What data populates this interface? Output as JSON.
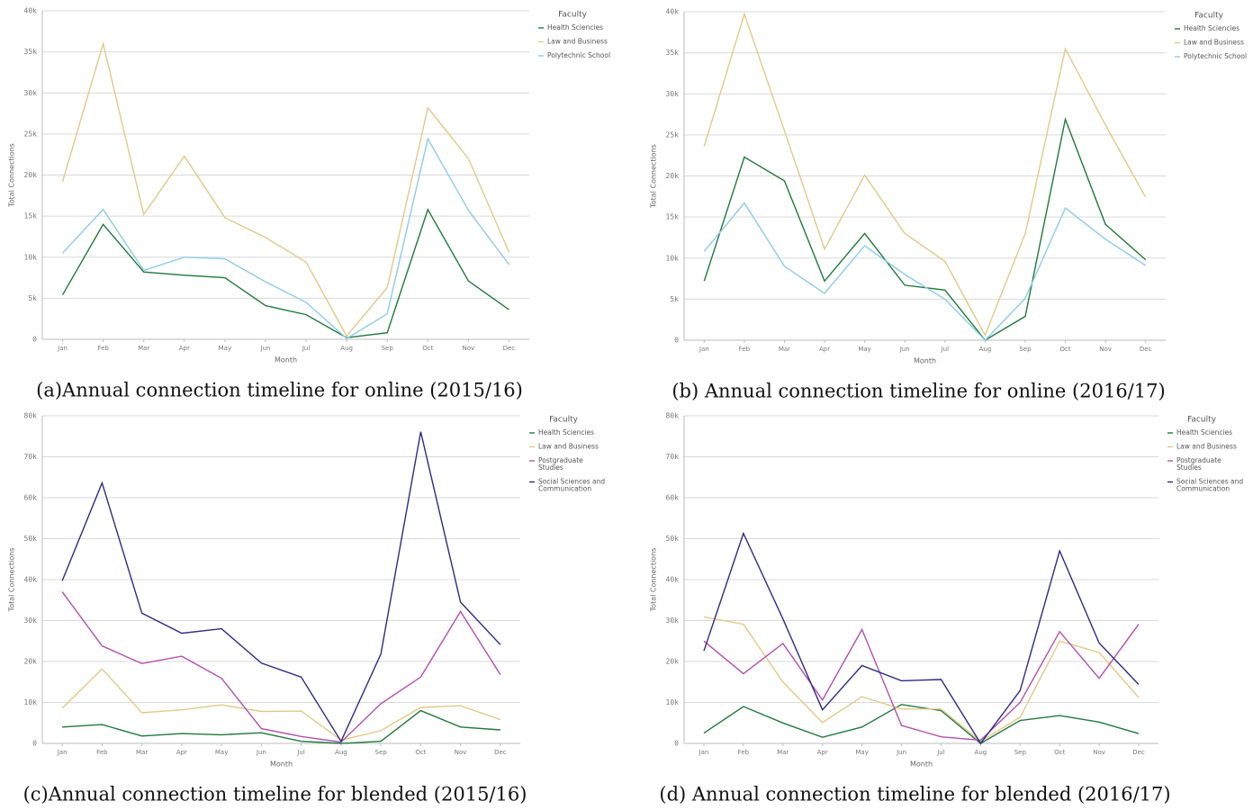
{
  "chart_data": [
    {
      "type": "line",
      "caption": "(a)Annual connection timeline for online (2015/16)",
      "x_label": "Month",
      "y_label": "Total Connections",
      "legend_title": "Faculty",
      "categories": [
        "Jan",
        "Feb",
        "Mar",
        "Apr",
        "May",
        "Jun",
        "Jul",
        "Aug",
        "Sep",
        "Oct",
        "Nov",
        "Dec"
      ],
      "ylim": [
        0,
        40000
      ],
      "yticks": [
        0,
        {
          "value": 5000,
          "label": "5k"
        },
        {
          "value": 10000,
          "label": "10k"
        },
        {
          "value": 15000,
          "label": "15k"
        },
        {
          "value": 20000,
          "label": "20k"
        },
        {
          "value": 25000,
          "label": "25k"
        },
        {
          "value": 30000,
          "label": "30k"
        },
        {
          "value": 35000,
          "label": "35k"
        },
        {
          "value": 40000,
          "label": "40k"
        }
      ],
      "grid": true,
      "series": [
        {
          "name": "Health Sciencies",
          "color": "#1e7a3a",
          "values": [
            5400,
            14000,
            8200,
            7800,
            7500,
            4100,
            3000,
            200,
            800,
            15800,
            7100,
            3600
          ]
        },
        {
          "name": "Law and Business",
          "color": "#e3c987",
          "values": [
            19200,
            36000,
            15200,
            22300,
            14800,
            12400,
            9400,
            400,
            6300,
            28200,
            22000,
            10600
          ]
        },
        {
          "name": "Polytechnic School",
          "color": "#8ccbea",
          "values": [
            10500,
            15800,
            8400,
            10000,
            9800,
            7000,
            4500,
            100,
            3100,
            24400,
            15700,
            9100
          ]
        }
      ]
    },
    {
      "type": "line",
      "caption": "(b) Annual connection timeline for online (2016/17)",
      "x_label": "Month",
      "y_label": "Total Connections",
      "legend_title": "Faculty",
      "categories": [
        "Jan",
        "Feb",
        "Mar",
        "Apr",
        "May",
        "Jun",
        "Jul",
        "Aug",
        "Sep",
        "Oct",
        "Nov",
        "Dec"
      ],
      "ylim": [
        0,
        40000
      ],
      "yticks": [
        0,
        {
          "value": 5000,
          "label": "5k"
        },
        {
          "value": 10000,
          "label": "10k"
        },
        {
          "value": 15000,
          "label": "15k"
        },
        {
          "value": 20000,
          "label": "20k"
        },
        {
          "value": 25000,
          "label": "25k"
        },
        {
          "value": 30000,
          "label": "30k"
        },
        {
          "value": 35000,
          "label": "35k"
        },
        {
          "value": 40000,
          "label": "40k"
        }
      ],
      "grid": true,
      "series": [
        {
          "name": "Health Sciencies",
          "color": "#1e7a3a",
          "values": [
            7200,
            22300,
            19400,
            7200,
            13000,
            6700,
            6100,
            0,
            2900,
            26900,
            14100,
            9800
          ]
        },
        {
          "name": "Law and Business",
          "color": "#e3c987",
          "values": [
            23600,
            39700,
            25500,
            11100,
            20100,
            13000,
            9600,
            600,
            13000,
            35500,
            26200,
            17400
          ]
        },
        {
          "name": "Polytechnic School",
          "color": "#8ccbea",
          "values": [
            10800,
            16700,
            9000,
            5700,
            11500,
            8000,
            5000,
            0,
            5100,
            16100,
            12300,
            9100
          ]
        }
      ]
    },
    {
      "type": "line",
      "caption": "(c)Annual connection timeline for blended (2015/16)",
      "x_label": "Month",
      "y_label": "Total Connections",
      "legend_title": "Faculty",
      "categories": [
        "Jan",
        "Feb",
        "Mar",
        "Apr",
        "May",
        "Jun",
        "Jul",
        "Aug",
        "Sep",
        "Oct",
        "Nov",
        "Dec"
      ],
      "ylim": [
        0,
        80000
      ],
      "yticks": [
        0,
        {
          "value": 10000,
          "label": "10k"
        },
        {
          "value": 20000,
          "label": "20k"
        },
        {
          "value": 30000,
          "label": "30k"
        },
        {
          "value": 40000,
          "label": "40k"
        },
        {
          "value": 50000,
          "label": "50k"
        },
        {
          "value": 60000,
          "label": "60k"
        },
        {
          "value": 70000,
          "label": "70k"
        },
        {
          "value": 80000,
          "label": "80k"
        }
      ],
      "grid": true,
      "series": [
        {
          "name": "Health Sciencies",
          "color": "#1e7a3a",
          "values": [
            4000,
            4600,
            1800,
            2400,
            2100,
            2600,
            500,
            0,
            500,
            8000,
            4000,
            3300
          ]
        },
        {
          "name": "Law and Business",
          "color": "#e3c987",
          "values": [
            8600,
            18200,
            7500,
            8200,
            9400,
            7800,
            7900,
            800,
            3100,
            8800,
            9200,
            5800
          ]
        },
        {
          "name": "Postgraduate Studies",
          "color": "#b44fae",
          "values": [
            37000,
            23800,
            19500,
            21300,
            15900,
            3600,
            1700,
            300,
            9700,
            16200,
            32200,
            16800
          ]
        },
        {
          "name": "Social Sciences and Communication",
          "color": "#2e2a86",
          "values": [
            39700,
            63600,
            31800,
            26900,
            28000,
            19600,
            16200,
            500,
            21800,
            76100,
            34500,
            24100
          ]
        }
      ]
    },
    {
      "type": "line",
      "caption": "(d) Annual connection timeline for blended (2016/17)",
      "x_label": "Month",
      "y_label": "Total Connections",
      "legend_title": "Faculty",
      "categories": [
        "Jan",
        "Feb",
        "Mar",
        "Apr",
        "May",
        "Jun",
        "Jul",
        "Aug",
        "Sep",
        "Oct",
        "Nov",
        "Dec"
      ],
      "ylim": [
        0,
        80000
      ],
      "yticks": [
        0,
        {
          "value": 10000,
          "label": "10k"
        },
        {
          "value": 20000,
          "label": "20k"
        },
        {
          "value": 30000,
          "label": "30k"
        },
        {
          "value": 40000,
          "label": "40k"
        },
        {
          "value": 50000,
          "label": "50k"
        },
        {
          "value": 60000,
          "label": "60k"
        },
        {
          "value": 70000,
          "label": "70k"
        },
        {
          "value": 80000,
          "label": "80k"
        }
      ],
      "grid": true,
      "series": [
        {
          "name": "Health Sciencies",
          "color": "#1e7a3a",
          "values": [
            2500,
            9000,
            5000,
            1500,
            4000,
            9500,
            8000,
            0,
            5600,
            6800,
            5200,
            2400
          ]
        },
        {
          "name": "Law and Business",
          "color": "#e3c987",
          "values": [
            30900,
            29100,
            15000,
            5100,
            11400,
            8400,
            8400,
            500,
            6400,
            25000,
            22200,
            11200
          ]
        },
        {
          "name": "Postgraduate Studies",
          "color": "#b44fae",
          "values": [
            25000,
            17000,
            24400,
            10600,
            27800,
            4400,
            1600,
            800,
            10000,
            27300,
            15900,
            29100
          ]
        },
        {
          "name": "Social Sciences and Communication",
          "color": "#2e2a86",
          "values": [
            22600,
            51300,
            30400,
            8200,
            19000,
            15300,
            15600,
            0,
            12900,
            47000,
            24500,
            14400
          ]
        }
      ]
    }
  ]
}
